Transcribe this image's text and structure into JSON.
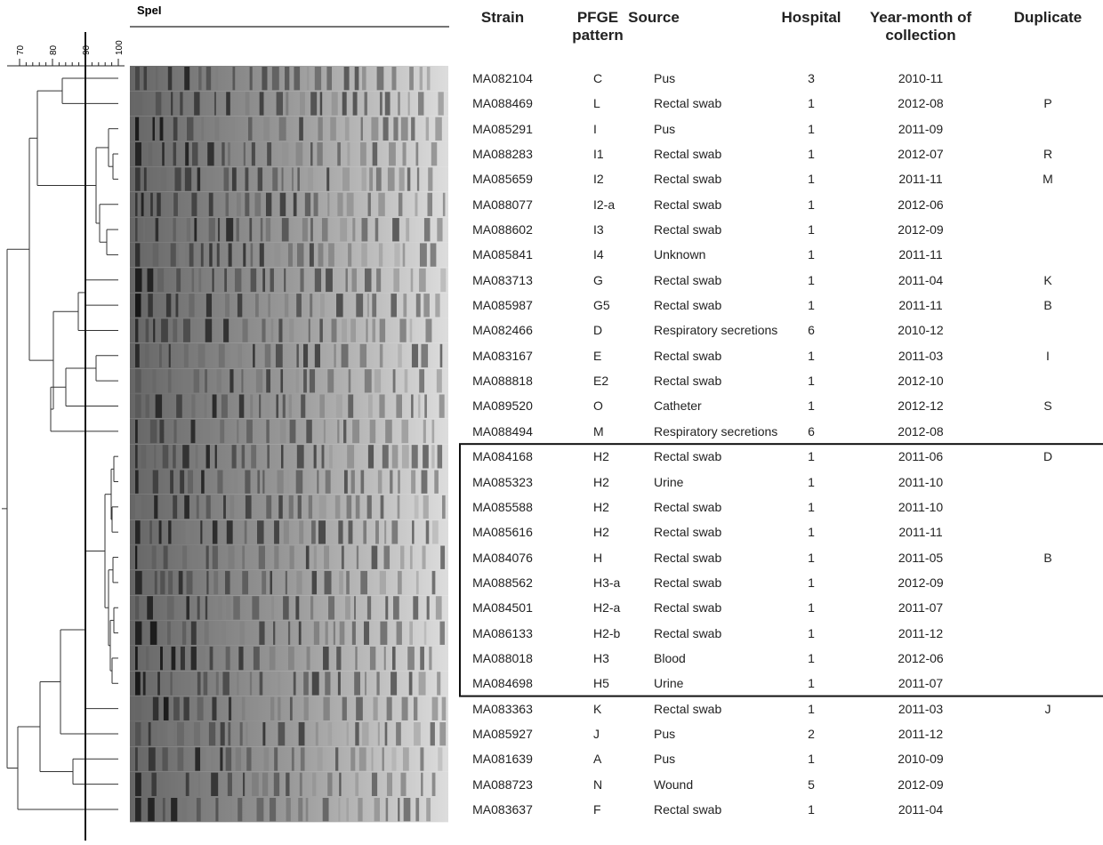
{
  "enzyme": "SpeI",
  "scale": {
    "ticks": [
      70,
      80,
      90,
      100
    ]
  },
  "table": {
    "headers": [
      "Strain",
      "PFGE pattern",
      "Source",
      "Hospital",
      "Year-month of collection",
      "Duplicate"
    ],
    "rows": [
      {
        "strain": "MA082104",
        "pfge": "C",
        "source": "Pus",
        "hospital": "3",
        "date": "2010-11"
      },
      {
        "strain": "MA088469",
        "pfge": "L",
        "source": "Rectal swab",
        "hospital": "1",
        "date": "2012-08",
        "duplicate": "P"
      },
      {
        "strain": "MA085291",
        "pfge": "I",
        "source": "Pus",
        "hospital": "1",
        "date": "2011-09"
      },
      {
        "strain": "MA088283",
        "pfge": "I1",
        "source": "Rectal swab",
        "hospital": "1",
        "date": "2012-07",
        "duplicate": "R"
      },
      {
        "strain": "MA085659",
        "pfge": "I2",
        "source": "Rectal swab",
        "hospital": "1",
        "date": "2011-11",
        "duplicate": "M"
      },
      {
        "strain": "MA088077",
        "pfge": "I2-a",
        "source": "Rectal swab",
        "hospital": "1",
        "date": "2012-06"
      },
      {
        "strain": "MA088602",
        "pfge": "I3",
        "source": "Rectal swab",
        "hospital": "1",
        "date": "2012-09"
      },
      {
        "strain": "MA085841",
        "pfge": "I4",
        "source": "Unknown",
        "hospital": "1",
        "date": "2011-11"
      },
      {
        "strain": "MA083713",
        "pfge": "G",
        "source": "Rectal swab",
        "hospital": "1",
        "date": "2011-04",
        "duplicate": "K"
      },
      {
        "strain": "MA085987",
        "pfge": "G5",
        "source": "Rectal swab",
        "hospital": "1",
        "date": "2011-11",
        "duplicate": "B"
      },
      {
        "strain": "MA082466",
        "pfge": "D",
        "source": "Respiratory secretions",
        "hospital": "6",
        "date": "2010-12"
      },
      {
        "strain": "MA083167",
        "pfge": "E",
        "source": "Rectal swab",
        "hospital": "1",
        "date": "2011-03",
        "duplicate": "I"
      },
      {
        "strain": "MA088818",
        "pfge": "E2",
        "source": "Rectal swab",
        "hospital": "1",
        "date": "2012-10"
      },
      {
        "strain": "MA089520",
        "pfge": "O",
        "source": "Catheter",
        "hospital": "1",
        "date": "2012-12",
        "duplicate": "S"
      },
      {
        "strain": "MA088494",
        "pfge": "M",
        "source": "Respiratory secretions",
        "hospital": "6",
        "date": "2012-08"
      },
      {
        "strain": "MA084168",
        "pfge": "H2",
        "source": "Rectal swab",
        "hospital": "1",
        "date": "2011-06",
        "duplicate": "D"
      },
      {
        "strain": "MA085323",
        "pfge": "H2",
        "source": "Urine",
        "hospital": "1",
        "date": "2011-10"
      },
      {
        "strain": "MA085588",
        "pfge": "H2",
        "source": "Rectal swab",
        "hospital": "1",
        "date": "2011-10"
      },
      {
        "strain": "MA085616",
        "pfge": "H2",
        "source": "Rectal swab",
        "hospital": "1",
        "date": "2011-11"
      },
      {
        "strain": "MA084076",
        "pfge": "H",
        "source": "Rectal swab",
        "hospital": "1",
        "date": "2011-05",
        "duplicate": "B"
      },
      {
        "strain": "MA088562",
        "pfge": "H3-a",
        "source": "Rectal swab",
        "hospital": "1",
        "date": "2012-09"
      },
      {
        "strain": "MA084501",
        "pfge": "H2-a",
        "source": "Rectal swab",
        "hospital": "1",
        "date": "2011-07"
      },
      {
        "strain": "MA086133",
        "pfge": "H2-b",
        "source": "Rectal swab",
        "hospital": "1",
        "date": "2011-12"
      },
      {
        "strain": "MA088018",
        "pfge": "H3",
        "source": "Blood",
        "hospital": "1",
        "date": "2012-06"
      },
      {
        "strain": "MA084698",
        "pfge": "H5",
        "source": "Urine",
        "hospital": "1",
        "date": "2011-07"
      },
      {
        "strain": "MA083363",
        "pfge": "K",
        "source": "Rectal swab",
        "hospital": "1",
        "date": "2011-03",
        "duplicate": "J"
      },
      {
        "strain": "MA085927",
        "pfge": "J",
        "source": "Pus",
        "hospital": "2",
        "date": "2011-12"
      },
      {
        "strain": "MA081639",
        "pfge": "A",
        "source": "Pus",
        "hospital": "1",
        "date": "2010-09"
      },
      {
        "strain": "MA088723",
        "pfge": "N",
        "source": "Wound",
        "hospital": "5",
        "date": "2012-09"
      },
      {
        "strain": "MA083637",
        "pfge": "F",
        "source": "Rectal swab",
        "hospital": "1",
        "date": "2011-04"
      }
    ]
  }
}
